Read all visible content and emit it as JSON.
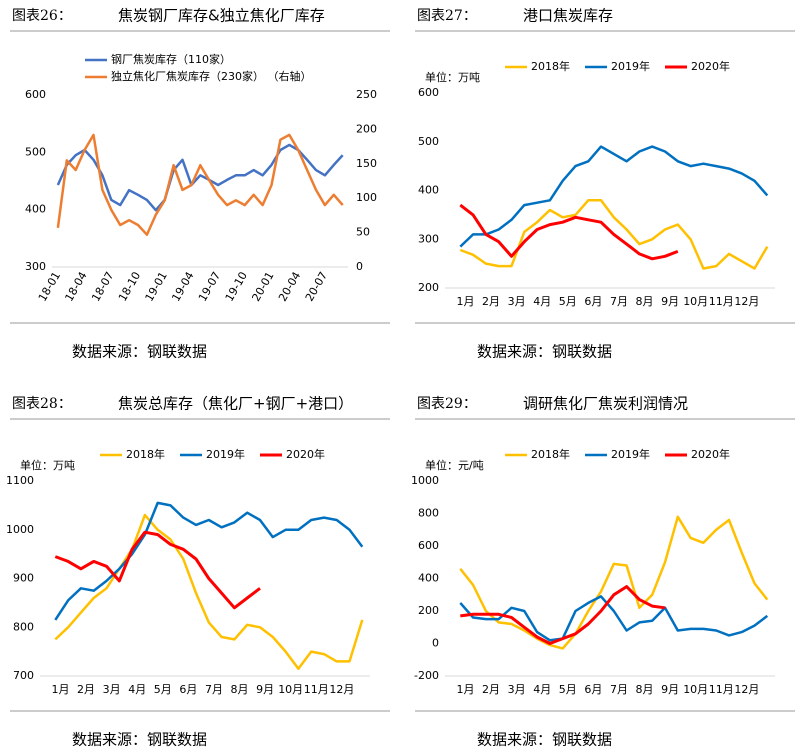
{
  "chart_data": [
    {
      "type": "line",
      "figure_label": "图表26：",
      "title": "焦炭钢厂库存&独立焦化厂库存",
      "source": "数据来源：钢联数据",
      "legend": "top",
      "x": [
        0,
        1,
        2,
        3,
        4,
        5,
        6,
        7,
        8,
        9,
        10,
        11,
        12,
        13,
        14,
        15,
        16,
        17,
        18,
        19,
        20,
        21,
        22,
        23,
        24,
        25,
        26,
        27,
        28,
        29,
        30,
        31,
        32
      ],
      "xlim": [
        -0.66,
        32.6
      ],
      "xticks": [
        {
          "value": 0,
          "label": "18-01"
        },
        {
          "value": 3,
          "label": "18-04"
        },
        {
          "value": 6,
          "label": "18-07"
        },
        {
          "value": 9,
          "label": "18-10"
        },
        {
          "value": 12,
          "label": "19-01"
        },
        {
          "value": 15,
          "label": "19-04"
        },
        {
          "value": 18,
          "label": "19-07"
        },
        {
          "value": 21,
          "label": "19-10"
        },
        {
          "value": 24,
          "label": "20-01"
        },
        {
          "value": 27,
          "label": "20-04"
        },
        {
          "value": 30,
          "label": "20-07"
        }
      ],
      "ylim": [
        300,
        600
      ],
      "yticks": [
        300,
        400,
        500,
        600
      ],
      "y2lim": [
        0,
        250
      ],
      "y2ticks": [
        0,
        50,
        100,
        150,
        200,
        250
      ],
      "series": [
        {
          "name": "钢厂焦炭库存（110家）",
          "color": "#4472c4",
          "values": [
            443,
            478,
            495,
            504,
            487,
            460,
            417,
            408,
            434,
            426,
            417,
            399,
            417,
            469,
            487,
            443,
            460,
            452,
            443,
            452,
            460,
            460,
            469,
            460,
            478,
            504,
            513,
            504,
            487,
            469,
            460,
            478,
            495
          ]
        },
        {
          "name": "独立焦化厂焦炭库存（230家） （右轴）",
          "color": "#ed7d31",
          "axis": "y2",
          "values": [
            57,
            155,
            141,
            170,
            192,
            112,
            83,
            61,
            68,
            61,
            47,
            76,
            97,
            148,
            112,
            119,
            148,
            126,
            105,
            90,
            97,
            90,
            105,
            90,
            119,
            185,
            192,
            170,
            141,
            112,
            90,
            105,
            90
          ]
        }
      ]
    },
    {
      "type": "line",
      "figure_label": "图表27：",
      "title": "港口焦炭库存",
      "source": "数据来源：钢联数据",
      "unit": "单位：万吨",
      "legend": "top",
      "x": [
        0.8,
        1.3,
        1.8,
        2.3,
        2.8,
        3.3,
        3.8,
        4.3,
        4.8,
        5.3,
        5.8,
        6.3,
        6.8,
        7.3,
        7.8,
        8.3,
        8.8,
        9.3,
        9.8,
        10.3,
        10.8,
        11.3,
        11.8,
        12.3,
        12.8
      ],
      "xlim": [
        0.2,
        13.1
      ],
      "xticks": [
        {
          "value": 1,
          "label": "1月"
        },
        {
          "value": 2,
          "label": "2月"
        },
        {
          "value": 3,
          "label": "3月"
        },
        {
          "value": 4,
          "label": "4月"
        },
        {
          "value": 5,
          "label": "5月"
        },
        {
          "value": 6,
          "label": "6月"
        },
        {
          "value": 7,
          "label": "7月"
        },
        {
          "value": 8,
          "label": "8月"
        },
        {
          "value": 9,
          "label": "9月"
        },
        {
          "value": 10,
          "label": "10月"
        },
        {
          "value": 11,
          "label": "11月"
        },
        {
          "value": 12,
          "label": "12月"
        }
      ],
      "ylim": [
        200,
        600
      ],
      "yticks": [
        200,
        300,
        400,
        500,
        600
      ],
      "series": [
        {
          "name": "2018年",
          "color": "#ffc000",
          "values": [
            278,
            268,
            250,
            245,
            245,
            315,
            335,
            360,
            345,
            350,
            380,
            380,
            345,
            320,
            290,
            300,
            320,
            330,
            300,
            240,
            245,
            270,
            255,
            240,
            285
          ]
        },
        {
          "name": "2019年",
          "color": "#0070c0",
          "values": [
            285,
            310,
            310,
            320,
            340,
            370,
            375,
            380,
            420,
            450,
            460,
            490,
            475,
            460,
            480,
            490,
            480,
            460,
            450,
            455,
            450,
            445,
            435,
            420,
            390
          ]
        },
        {
          "name": "2020年",
          "color": "#ff0000",
          "values": [
            370,
            350,
            310,
            295,
            265,
            295,
            320,
            330,
            335,
            345,
            340,
            335,
            310,
            290,
            270,
            260,
            265,
            275,
            null,
            null,
            null,
            null,
            null,
            null,
            null
          ]
        }
      ]
    },
    {
      "type": "line",
      "figure_label": "图表28：",
      "title": "焦炭总库存（焦化厂+钢厂+港口）",
      "source": "数据来源：钢联数据",
      "unit": "单位：万吨",
      "legend": "top",
      "x": [
        0.8,
        1.3,
        1.8,
        2.3,
        2.8,
        3.3,
        3.8,
        4.3,
        4.8,
        5.3,
        5.8,
        6.3,
        6.8,
        7.3,
        7.8,
        8.3,
        8.8,
        9.3,
        9.8,
        10.3,
        10.8,
        11.3,
        11.8,
        12.3,
        12.8
      ],
      "xlim": [
        0.2,
        13.1
      ],
      "xticks": [
        {
          "value": 1,
          "label": "1月"
        },
        {
          "value": 2,
          "label": "2月"
        },
        {
          "value": 3,
          "label": "3月"
        },
        {
          "value": 4,
          "label": "4月"
        },
        {
          "value": 5,
          "label": "5月"
        },
        {
          "value": 6,
          "label": "6月"
        },
        {
          "value": 7,
          "label": "7月"
        },
        {
          "value": 8,
          "label": "8月"
        },
        {
          "value": 9,
          "label": "9月"
        },
        {
          "value": 10,
          "label": "10月"
        },
        {
          "value": 11,
          "label": "11月"
        },
        {
          "value": 12,
          "label": "12月"
        }
      ],
      "ylim": [
        700,
        1100
      ],
      "yticks": [
        700,
        800,
        900,
        1000,
        1100
      ],
      "series": [
        {
          "name": "2018年",
          "color": "#ffc000",
          "values": [
            775,
            800,
            830,
            860,
            880,
            920,
            960,
            1030,
            1000,
            980,
            940,
            870,
            810,
            780,
            775,
            805,
            800,
            780,
            750,
            715,
            750,
            745,
            730,
            730,
            815
          ]
        },
        {
          "name": "2019年",
          "color": "#0070c0",
          "values": [
            815,
            855,
            880,
            875,
            895,
            920,
            950,
            990,
            1055,
            1050,
            1025,
            1010,
            1020,
            1005,
            1015,
            1035,
            1020,
            985,
            1000,
            1000,
            1020,
            1025,
            1020,
            1000,
            965
          ]
        },
        {
          "name": "2020年",
          "color": "#ff0000",
          "values": [
            945,
            935,
            920,
            935,
            925,
            895,
            960,
            995,
            990,
            970,
            960,
            940,
            900,
            870,
            840,
            860,
            880,
            null,
            null,
            null,
            null,
            null,
            null,
            null,
            null
          ]
        }
      ]
    },
    {
      "type": "line",
      "figure_label": "图表29：",
      "title": "调研焦化厂焦炭利润情况",
      "source": "数据来源：钢联数据",
      "unit": "单位：元/吨",
      "legend": "top",
      "x": [
        0.8,
        1.3,
        1.8,
        2.3,
        2.8,
        3.3,
        3.8,
        4.3,
        4.8,
        5.3,
        5.8,
        6.3,
        6.8,
        7.3,
        7.8,
        8.3,
        8.8,
        9.3,
        9.8,
        10.3,
        10.8,
        11.3,
        11.8,
        12.3,
        12.8
      ],
      "xlim": [
        0.2,
        13.1
      ],
      "xticks": [
        {
          "value": 1,
          "label": "1月"
        },
        {
          "value": 2,
          "label": "2月"
        },
        {
          "value": 3,
          "label": "3月"
        },
        {
          "value": 4,
          "label": "4月"
        },
        {
          "value": 5,
          "label": "5月"
        },
        {
          "value": 6,
          "label": "6月"
        },
        {
          "value": 7,
          "label": "7月"
        },
        {
          "value": 8,
          "label": "8月"
        },
        {
          "value": 9,
          "label": "9月"
        },
        {
          "value": 10,
          "label": "10月"
        },
        {
          "value": 11,
          "label": "11月"
        },
        {
          "value": 12,
          "label": "12月"
        }
      ],
      "ylim": [
        -200,
        1000
      ],
      "yticks": [
        -200,
        0,
        200,
        400,
        600,
        800,
        1000
      ],
      "series": [
        {
          "name": "2018年",
          "color": "#ffc000",
          "values": [
            460,
            360,
            200,
            130,
            120,
            80,
            30,
            -10,
            -30,
            60,
            200,
            320,
            490,
            480,
            220,
            300,
            500,
            780,
            650,
            620,
            700,
            760,
            560,
            370,
            270
          ]
        },
        {
          "name": "2019年",
          "color": "#0070c0",
          "values": [
            250,
            160,
            150,
            150,
            220,
            200,
            70,
            20,
            30,
            200,
            250,
            290,
            200,
            80,
            130,
            140,
            220,
            80,
            90,
            90,
            80,
            50,
            70,
            110,
            170
          ]
        },
        {
          "name": "2020年",
          "color": "#ff0000",
          "values": [
            170,
            180,
            180,
            180,
            160,
            100,
            40,
            0,
            30,
            60,
            120,
            200,
            300,
            350,
            270,
            230,
            220,
            null,
            null,
            null,
            null,
            null,
            null,
            null,
            null
          ]
        }
      ]
    }
  ]
}
